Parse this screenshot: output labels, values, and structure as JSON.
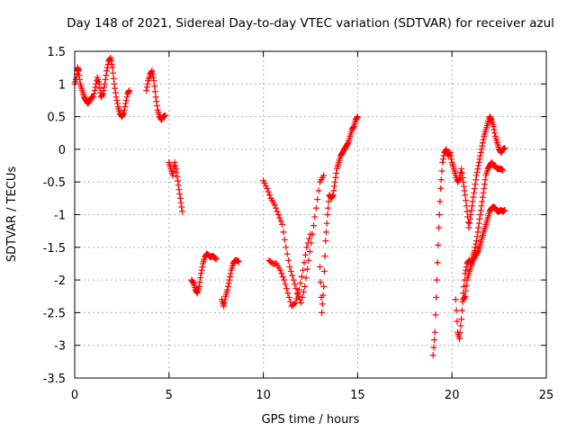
{
  "chart_data": {
    "type": "scatter",
    "title": "Day 148 of 2021, Sidereal Day-to-day VTEC variation (SDTVAR) for receiver azul",
    "xlabel": "GPS time / hours",
    "ylabel": "SDTVAR / TECUs",
    "xlim": [
      0,
      25
    ],
    "ylim": [
      -3.5,
      1.5
    ],
    "xticks": [
      "0",
      "5",
      "10",
      "15",
      "20",
      "25"
    ],
    "yticks": [
      "1.5",
      "1",
      "0.5",
      "0",
      "-0.5",
      "-1",
      "-1.5",
      "-2",
      "-2.5",
      "-3",
      "-3.5"
    ],
    "grid": true,
    "marker": "+",
    "series": [
      {
        "name": "SDTVAR",
        "color": "#ff0000",
        "segments": [
          [
            [
              0.0,
              1.0
            ],
            [
              0.1,
              1.1
            ],
            [
              0.15,
              1.25
            ],
            [
              0.2,
              1.2
            ],
            [
              0.3,
              1.0
            ],
            [
              0.4,
              0.9
            ],
            [
              0.5,
              0.8
            ],
            [
              0.6,
              0.75
            ],
            [
              0.7,
              0.7
            ],
            [
              0.8,
              0.75
            ],
            [
              0.9,
              0.8
            ],
            [
              1.0,
              0.8
            ],
            [
              1.1,
              0.95
            ],
            [
              1.2,
              1.1
            ],
            [
              1.3,
              1.0
            ],
            [
              1.4,
              0.8
            ],
            [
              1.5,
              0.85
            ],
            [
              1.6,
              1.0
            ],
            [
              1.7,
              1.2
            ],
            [
              1.8,
              1.35
            ],
            [
              1.9,
              1.4
            ],
            [
              2.0,
              1.25
            ],
            [
              2.1,
              1.0
            ],
            [
              2.2,
              0.8
            ],
            [
              2.3,
              0.65
            ],
            [
              2.4,
              0.55
            ],
            [
              2.5,
              0.5
            ],
            [
              2.6,
              0.55
            ],
            [
              2.7,
              0.7
            ],
            [
              2.8,
              0.85
            ],
            [
              2.9,
              0.9
            ]
          ],
          [
            [
              3.8,
              0.9
            ],
            [
              3.9,
              1.05
            ],
            [
              4.0,
              1.15
            ],
            [
              4.1,
              1.2
            ],
            [
              4.2,
              1.05
            ],
            [
              4.3,
              0.8
            ],
            [
              4.4,
              0.6
            ],
            [
              4.5,
              0.5
            ],
            [
              4.6,
              0.45
            ],
            [
              4.7,
              0.5
            ],
            [
              4.8,
              0.52
            ]
          ],
          [
            [
              5.0,
              -0.2
            ],
            [
              5.1,
              -0.3
            ],
            [
              5.2,
              -0.4
            ],
            [
              5.3,
              -0.2
            ],
            [
              5.4,
              -0.35
            ],
            [
              5.5,
              -0.55
            ],
            [
              5.6,
              -0.75
            ],
            [
              5.7,
              -0.95
            ]
          ],
          [
            [
              6.2,
              -2.0
            ],
            [
              6.3,
              -2.05
            ],
            [
              6.4,
              -2.15
            ],
            [
              6.5,
              -2.2
            ],
            [
              6.6,
              -2.1
            ],
            [
              6.7,
              -1.9
            ],
            [
              6.8,
              -1.75
            ],
            [
              6.9,
              -1.65
            ],
            [
              7.0,
              -1.6
            ],
            [
              7.1,
              -1.62
            ],
            [
              7.2,
              -1.65
            ],
            [
              7.3,
              -1.63
            ],
            [
              7.4,
              -1.65
            ],
            [
              7.5,
              -1.68
            ]
          ],
          [
            [
              7.8,
              -2.3
            ],
            [
              7.9,
              -2.4
            ],
            [
              8.0,
              -2.25
            ],
            [
              8.1,
              -2.15
            ],
            [
              8.2,
              -2.0
            ],
            [
              8.3,
              -1.85
            ],
            [
              8.4,
              -1.75
            ],
            [
              8.5,
              -1.7
            ],
            [
              8.6,
              -1.7
            ],
            [
              8.7,
              -1.72
            ]
          ],
          [
            [
              10.0,
              -0.48
            ],
            [
              10.2,
              -0.6
            ],
            [
              10.4,
              -0.75
            ],
            [
              10.6,
              -0.85
            ],
            [
              10.8,
              -1.0
            ],
            [
              11.0,
              -1.15
            ],
            [
              11.2,
              -1.5
            ],
            [
              11.4,
              -1.8
            ],
            [
              11.6,
              -2.0
            ],
            [
              11.8,
              -2.2
            ],
            [
              12.0,
              -2.35
            ],
            [
              12.2,
              -2.1
            ],
            [
              12.4,
              -1.7
            ],
            [
              12.6,
              -1.3
            ],
            [
              12.8,
              -0.9
            ],
            [
              13.0,
              -0.5
            ],
            [
              13.2,
              -0.4
            ]
          ],
          [
            [
              10.3,
              -1.7
            ],
            [
              10.5,
              -1.75
            ],
            [
              10.7,
              -1.75
            ],
            [
              10.9,
              -1.85
            ],
            [
              11.1,
              -2.0
            ],
            [
              11.3,
              -2.2
            ],
            [
              11.5,
              -2.4
            ],
            [
              11.7,
              -2.35
            ],
            [
              11.9,
              -2.15
            ],
            [
              12.1,
              -1.85
            ],
            [
              12.3,
              -1.5
            ],
            [
              12.5,
              -1.3
            ]
          ],
          [
            [
              13.0,
              -1.8
            ],
            [
              13.1,
              -2.5
            ],
            [
              13.2,
              -2.1
            ],
            [
              13.3,
              -1.4
            ],
            [
              13.4,
              -1.0
            ],
            [
              13.5,
              -0.7
            ],
            [
              13.6,
              -0.75
            ],
            [
              13.7,
              -0.7
            ],
            [
              13.8,
              -0.5
            ],
            [
              13.9,
              -0.3
            ],
            [
              14.0,
              -0.2
            ],
            [
              14.1,
              -0.1
            ],
            [
              14.2,
              -0.05
            ],
            [
              14.3,
              0.0
            ],
            [
              14.4,
              0.05
            ],
            [
              14.5,
              0.1
            ],
            [
              14.6,
              0.2
            ],
            [
              14.7,
              0.3
            ],
            [
              14.8,
              0.35
            ],
            [
              14.9,
              0.45
            ],
            [
              15.0,
              0.5
            ]
          ],
          [
            [
              19.0,
              -3.15
            ],
            [
              19.1,
              -2.8
            ],
            [
              19.2,
              -2.0
            ],
            [
              19.3,
              -1.2
            ],
            [
              19.4,
              -0.6
            ],
            [
              19.5,
              -0.2
            ],
            [
              19.6,
              -0.05
            ],
            [
              19.7,
              0.0
            ],
            [
              19.8,
              -0.1
            ],
            [
              19.9,
              -0.05
            ],
            [
              20.0,
              -0.2
            ],
            [
              20.1,
              -0.3
            ],
            [
              20.2,
              -0.4
            ],
            [
              20.3,
              -0.5
            ],
            [
              20.4,
              -0.45
            ],
            [
              20.5,
              -0.3
            ],
            [
              20.6,
              -0.5
            ],
            [
              20.7,
              -0.7
            ],
            [
              20.8,
              -0.95
            ],
            [
              20.9,
              -1.2
            ],
            [
              21.0,
              -1.0
            ],
            [
              21.1,
              -0.8
            ],
            [
              21.2,
              -0.6
            ],
            [
              21.3,
              -0.4
            ],
            [
              21.4,
              -0.25
            ],
            [
              21.5,
              -0.1
            ],
            [
              21.6,
              0.05
            ],
            [
              21.7,
              0.2
            ],
            [
              21.8,
              0.3
            ],
            [
              21.9,
              0.4
            ],
            [
              22.0,
              0.5
            ],
            [
              22.1,
              0.45
            ],
            [
              22.2,
              0.35
            ],
            [
              22.3,
              0.2
            ],
            [
              22.4,
              0.1
            ],
            [
              22.5,
              0.0
            ],
            [
              22.6,
              -0.05
            ],
            [
              22.7,
              0.0
            ],
            [
              22.8,
              0.02
            ]
          ],
          [
            [
              20.2,
              -2.3
            ],
            [
              20.3,
              -2.8
            ],
            [
              20.4,
              -2.9
            ],
            [
              20.5,
              -2.6
            ],
            [
              20.6,
              -2.2
            ],
            [
              20.7,
              -1.9
            ],
            [
              20.8,
              -1.75
            ],
            [
              20.9,
              -1.7
            ],
            [
              21.0,
              -1.75
            ],
            [
              21.1,
              -1.65
            ],
            [
              21.2,
              -1.55
            ],
            [
              21.3,
              -1.4
            ],
            [
              21.4,
              -1.2
            ],
            [
              21.5,
              -1.0
            ],
            [
              21.6,
              -0.8
            ],
            [
              21.7,
              -0.6
            ],
            [
              21.8,
              -0.4
            ],
            [
              21.9,
              -0.3
            ],
            [
              22.0,
              -0.25
            ],
            [
              22.1,
              -0.2
            ],
            [
              22.2,
              -0.25
            ],
            [
              22.3,
              -0.25
            ],
            [
              22.4,
              -0.3
            ],
            [
              22.5,
              -0.3
            ],
            [
              22.6,
              -0.3
            ],
            [
              22.7,
              -0.32
            ]
          ],
          [
            [
              20.6,
              -2.3
            ],
            [
              20.7,
              -2.25
            ],
            [
              20.8,
              -2.0
            ],
            [
              20.9,
              -1.9
            ],
            [
              21.0,
              -1.8
            ],
            [
              21.1,
              -1.7
            ],
            [
              21.2,
              -1.65
            ],
            [
              21.3,
              -1.6
            ],
            [
              21.4,
              -1.55
            ],
            [
              21.5,
              -1.45
            ],
            [
              21.6,
              -1.35
            ],
            [
              21.7,
              -1.25
            ],
            [
              21.8,
              -1.15
            ],
            [
              21.9,
              -1.05
            ],
            [
              22.0,
              -0.95
            ],
            [
              22.1,
              -0.9
            ],
            [
              22.2,
              -0.88
            ],
            [
              22.3,
              -0.9
            ],
            [
              22.4,
              -0.95
            ],
            [
              22.5,
              -0.95
            ],
            [
              22.6,
              -0.93
            ],
            [
              22.7,
              -0.95
            ],
            [
              22.8,
              -0.93
            ]
          ]
        ]
      }
    ]
  }
}
